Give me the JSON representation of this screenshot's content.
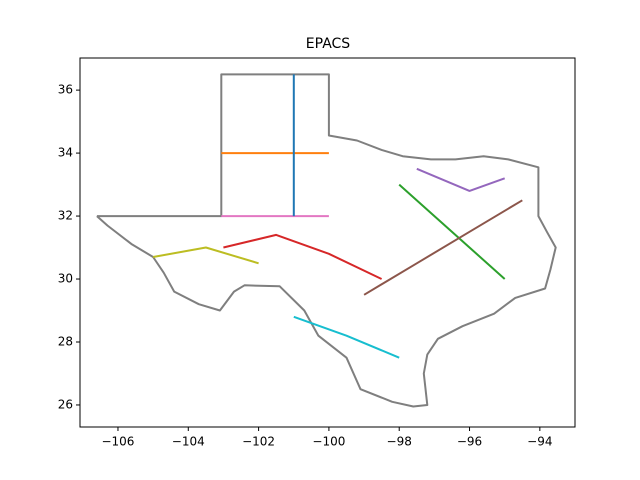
{
  "chart_data": {
    "type": "line",
    "title": "EPACS",
    "xlim": [
      -107.08,
      -93.0
    ],
    "ylim": [
      25.3,
      37.02
    ],
    "xticks": [
      {
        "value": -106,
        "label": "−106"
      },
      {
        "value": -104,
        "label": "−104"
      },
      {
        "value": -102,
        "label": "−102"
      },
      {
        "value": -100,
        "label": "−100"
      },
      {
        "value": -98,
        "label": "−98"
      },
      {
        "value": -96,
        "label": "−96"
      },
      {
        "value": -94,
        "label": "−94"
      }
    ],
    "yticks": [
      26,
      28,
      30,
      32,
      34,
      36
    ],
    "series": [
      {
        "color": "#7f7f7f",
        "x": [
          -106.6,
          -103.06,
          -103.06,
          -100.0,
          -100.0,
          -99.2,
          -98.5,
          -97.9,
          -97.1,
          -96.4,
          -95.6,
          -94.9,
          -94.04,
          -94.04,
          -93.8,
          -93.55,
          -93.7,
          -93.85,
          -94.7,
          -95.3,
          -96.2,
          -96.9,
          -97.2,
          -97.3,
          -97.2,
          -97.6,
          -98.2,
          -99.1,
          -99.5,
          -100.3,
          -100.7,
          -101.4,
          -102.4,
          -102.7,
          -103.1,
          -103.7,
          -104.4,
          -104.7,
          -105.0,
          -105.6,
          -106.3,
          -106.6
        ],
        "y": [
          32.0,
          32.0,
          36.5,
          36.5,
          34.56,
          34.4,
          34.1,
          33.9,
          33.8,
          33.8,
          33.9,
          33.8,
          33.55,
          32.0,
          31.5,
          31.0,
          30.3,
          29.7,
          29.4,
          28.9,
          28.5,
          28.1,
          27.6,
          27.0,
          26.0,
          25.95,
          26.1,
          26.5,
          27.5,
          28.2,
          29.0,
          29.77,
          29.8,
          29.6,
          29.0,
          29.2,
          29.6,
          30.2,
          30.7,
          31.1,
          31.7,
          32.0
        ]
      },
      {
        "color": "#e377c2",
        "x": [
          -103.06,
          -100.0
        ],
        "y": [
          32.0,
          32.0
        ]
      },
      {
        "color": "#ff7f0e",
        "x": [
          -103.06,
          -100.0
        ],
        "y": [
          34.0,
          34.0
        ]
      },
      {
        "color": "#1f77b4",
        "x": [
          -101.0,
          -101.0
        ],
        "y": [
          36.5,
          32.0
        ]
      },
      {
        "color": "#2ca02c",
        "x": [
          -98.0,
          -97.0,
          -96.0,
          -95.0
        ],
        "y": [
          33.0,
          32.0,
          31.0,
          30.0
        ]
      },
      {
        "color": "#bcbd22",
        "x": [
          -105.0,
          -103.5,
          -102.0
        ],
        "y": [
          30.7,
          31.0,
          30.5
        ]
      },
      {
        "color": "#d62728",
        "x": [
          -103.0,
          -101.5,
          -100.0,
          -98.5
        ],
        "y": [
          31.0,
          31.4,
          30.8,
          30.0
        ]
      },
      {
        "color": "#17becf",
        "x": [
          -101.0,
          -99.5,
          -98.0
        ],
        "y": [
          28.8,
          28.2,
          27.5
        ]
      },
      {
        "color": "#8c564b",
        "x": [
          -99.0,
          -97.5,
          -96.0,
          -94.5
        ],
        "y": [
          29.5,
          30.5,
          31.5,
          32.5
        ]
      },
      {
        "color": "#9467bd",
        "x": [
          -97.5,
          -96.0,
          -95.0
        ],
        "y": [
          33.5,
          32.8,
          33.2
        ]
      }
    ]
  }
}
